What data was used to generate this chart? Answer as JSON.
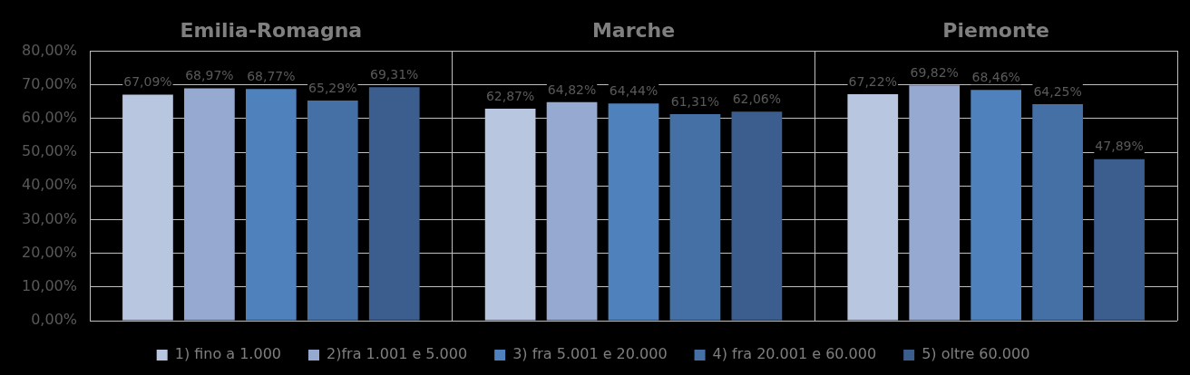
{
  "chart_data": {
    "type": "bar",
    "categories": [
      "Emilia-Romagna",
      "Marche",
      "Piemonte"
    ],
    "series": [
      {
        "name": "1) fino a 1.000",
        "color": "#b9c6e0",
        "values": [
          67.09,
          62.87,
          67.22
        ],
        "value_labels": [
          "67,09%",
          "62,87%",
          "67,22%"
        ]
      },
      {
        "name": "2)fra 1.001 e 5.000",
        "color": "#95a9d1",
        "values": [
          68.97,
          64.82,
          69.82
        ],
        "value_labels": [
          "68,97%",
          "64,82%",
          "69,82%"
        ]
      },
      {
        "name": "3) fra 5.001 e 20.000",
        "color": "#4f81bd",
        "values": [
          68.77,
          64.44,
          68.46
        ],
        "value_labels": [
          "68,77%",
          "64,44%",
          "68,46%"
        ]
      },
      {
        "name": "4) fra 20.001 e 60.000",
        "color": "#4470a6",
        "values": [
          65.29,
          61.31,
          64.25
        ],
        "value_labels": [
          "65,29%",
          "61,31%",
          "64,25%"
        ]
      },
      {
        "name": "5) oltre 60.000",
        "color": "#3b5e8f",
        "values": [
          69.31,
          62.06,
          47.89
        ],
        "value_labels": [
          "69,31%",
          "62,06%",
          "47,89%"
        ]
      }
    ],
    "ylim": [
      0,
      80
    ],
    "yticks": [
      {
        "value": 0,
        "label": "0,00%"
      },
      {
        "value": 10,
        "label": "10,00%"
      },
      {
        "value": 20,
        "label": "20,00%"
      },
      {
        "value": 30,
        "label": "30,00%"
      },
      {
        "value": 40,
        "label": "40,00%"
      },
      {
        "value": 50,
        "label": "50,00%"
      },
      {
        "value": 60,
        "label": "60,00%"
      },
      {
        "value": 70,
        "label": "70,00%"
      },
      {
        "value": 80,
        "label": "80,00%"
      }
    ],
    "grid": true,
    "legend": "bottom"
  }
}
